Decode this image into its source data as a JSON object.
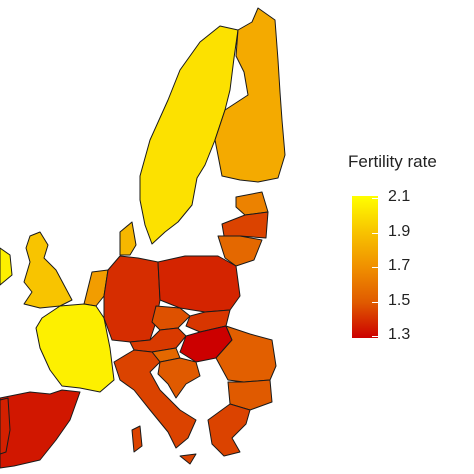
{
  "legend": {
    "title": "Fertility rate",
    "min": 1.3,
    "max": 2.1,
    "ticks": [
      "2.1",
      "1.9",
      "1.7",
      "1.5",
      "1.3"
    ],
    "tick_values": [
      2.1,
      1.9,
      1.7,
      1.5,
      1.3
    ],
    "gradient_colors": [
      "#ffff00",
      "#f8c400",
      "#f09000",
      "#e05a00",
      "#cc0000"
    ]
  },
  "colors": {
    "outline": "#1a1a1a",
    "background": "#ffffff"
  },
  "regions": [
    {
      "name": "norway-sweden",
      "rate": 2.0
    },
    {
      "name": "finland",
      "rate": 1.8
    },
    {
      "name": "estonia",
      "rate": 1.65
    },
    {
      "name": "latvia",
      "rate": 1.45
    },
    {
      "name": "lithuania",
      "rate": 1.55
    },
    {
      "name": "denmark",
      "rate": 1.85
    },
    {
      "name": "united-kingdom",
      "rate": 1.9
    },
    {
      "name": "ireland",
      "rate": 2.05
    },
    {
      "name": "france",
      "rate": 2.05
    },
    {
      "name": "germany",
      "rate": 1.4
    },
    {
      "name": "poland",
      "rate": 1.38
    },
    {
      "name": "czechia",
      "rate": 1.48
    },
    {
      "name": "slovakia",
      "rate": 1.42
    },
    {
      "name": "austria",
      "rate": 1.43
    },
    {
      "name": "hungary",
      "rate": 1.3
    },
    {
      "name": "romania",
      "rate": 1.52
    },
    {
      "name": "bulgaria",
      "rate": 1.5
    },
    {
      "name": "greece",
      "rate": 1.45
    },
    {
      "name": "italy",
      "rate": 1.45
    },
    {
      "name": "slovenia",
      "rate": 1.55
    },
    {
      "name": "croatia",
      "rate": 1.5
    },
    {
      "name": "spain",
      "rate": 1.35
    },
    {
      "name": "portugal",
      "rate": 1.37
    },
    {
      "name": "benelux",
      "rate": 1.75
    }
  ]
}
